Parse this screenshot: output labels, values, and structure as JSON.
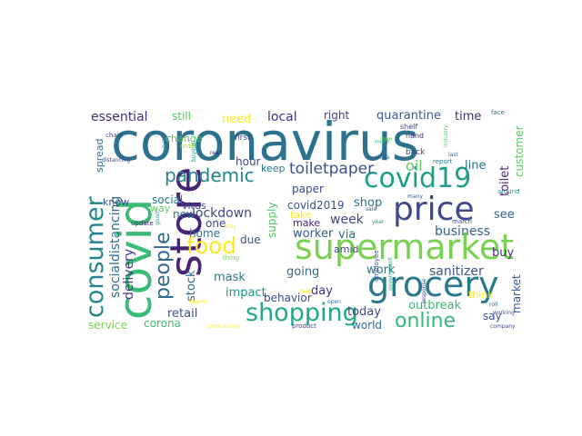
{
  "cloud": {
    "background": "#ffffff",
    "words": [
      {
        "text": "coronavirus",
        "color": "#2c728e"
      },
      {
        "text": "store",
        "color": "#482475"
      },
      {
        "text": "covid",
        "color": "#3bbb75"
      },
      {
        "text": "supermarket",
        "color": "#7ad151"
      },
      {
        "text": "grocery",
        "color": "#2a788e"
      },
      {
        "text": "price",
        "color": "#3e4a89"
      },
      {
        "text": "consumer",
        "color": "#25858e"
      },
      {
        "text": "covid19",
        "color": "#1f9e89"
      },
      {
        "text": "shopping",
        "color": "#22a884"
      },
      {
        "text": "food",
        "color": "#fde725"
      },
      {
        "text": "online",
        "color": "#35b779"
      },
      {
        "text": "people",
        "color": "#31688e"
      },
      {
        "text": "pandemic",
        "color": "#26828e"
      },
      {
        "text": "toiletpaper",
        "color": "#3b528b"
      },
      {
        "text": "socialdistancing",
        "color": "#2e6f8e"
      },
      {
        "text": "lockdown",
        "color": "#404688"
      },
      {
        "text": "delivery",
        "color": "#443983"
      },
      {
        "text": "sanitizer",
        "color": "#3a548c"
      },
      {
        "text": "business",
        "color": "#33638d"
      },
      {
        "text": "essential",
        "color": "#472d7b"
      },
      {
        "text": "quarantine",
        "color": "#38598c"
      },
      {
        "text": "local",
        "color": "#46337f"
      },
      {
        "text": "need",
        "color": "#fde725"
      },
      {
        "text": "still",
        "color": "#5ec962"
      },
      {
        "text": "right",
        "color": "#414487"
      },
      {
        "text": "time",
        "color": "#472c7a"
      },
      {
        "text": "oil",
        "color": "#5ec962"
      },
      {
        "text": "paper",
        "color": "#3e4989"
      },
      {
        "text": "covid2019",
        "color": "#3b528b"
      },
      {
        "text": "shop",
        "color": "#2c728e"
      },
      {
        "text": "worker",
        "color": "#365c8d"
      },
      {
        "text": "via",
        "color": "#2d708e"
      },
      {
        "text": "week",
        "color": "#3f4889"
      },
      {
        "text": "supply",
        "color": "#52c569"
      },
      {
        "text": "stock",
        "color": "#31688e"
      },
      {
        "text": "mask",
        "color": "#2a788e"
      },
      {
        "text": "impact",
        "color": "#21918c"
      },
      {
        "text": "retail",
        "color": "#3b528b"
      },
      {
        "text": "corona",
        "color": "#44bf70"
      },
      {
        "text": "service",
        "color": "#7ad151"
      },
      {
        "text": "outbreak",
        "color": "#35b779"
      },
      {
        "text": "today",
        "color": "#404688"
      },
      {
        "text": "world",
        "color": "#2e6e8e"
      },
      {
        "text": "day",
        "color": "#46337f"
      },
      {
        "text": "work",
        "color": "#2a778e"
      },
      {
        "text": "going",
        "color": "#31688e"
      },
      {
        "text": "behavior",
        "color": "#3e4989"
      },
      {
        "text": "market",
        "color": "#38598c"
      },
      {
        "text": "buy",
        "color": "#472d7b"
      },
      {
        "text": "say",
        "color": "#3b528b"
      },
      {
        "text": "see",
        "color": "#33638d"
      },
      {
        "text": "toilet",
        "color": "#482878"
      },
      {
        "text": "line",
        "color": "#2e6f8e"
      },
      {
        "text": "customer",
        "color": "#5ec962"
      },
      {
        "text": "hour",
        "color": "#3e4a89"
      },
      {
        "text": "keep",
        "color": "#2a788e"
      },
      {
        "text": "change",
        "color": "#52c569"
      },
      {
        "text": "spread",
        "color": "#2c728e"
      },
      {
        "text": "know",
        "color": "#3b528b"
      },
      {
        "text": "way",
        "color": "#5ec962"
      },
      {
        "text": "social",
        "color": "#2a788e"
      },
      {
        "text": "new",
        "color": "#31688e"
      },
      {
        "text": "one",
        "color": "#404688"
      },
      {
        "text": "virus",
        "color": "#3e4a89"
      },
      {
        "text": "home",
        "color": "#2c728e"
      },
      {
        "text": "due",
        "color": "#3b528b"
      },
      {
        "text": "make",
        "color": "#482475"
      },
      {
        "text": "take",
        "color": "#fde725"
      },
      {
        "text": "amid",
        "color": "#3e4a89"
      },
      {
        "text": "think",
        "color": "#fde725"
      },
      {
        "text": "first",
        "color": "#3e4989"
      },
      {
        "text": "face",
        "color": "#2c728e"
      },
      {
        "text": "chain",
        "color": "#414487"
      },
      {
        "text": "distancing",
        "color": "#3b528b"
      },
      {
        "text": "order",
        "color": "#9fda3a"
      },
      {
        "text": "read",
        "color": "#482475"
      },
      {
        "text": "back",
        "color": "#414487"
      },
      {
        "text": "hand",
        "color": "#46337f"
      },
      {
        "text": "shelf",
        "color": "#3e4a89"
      },
      {
        "text": "report",
        "color": "#2a788e"
      },
      {
        "text": "around",
        "color": "#21918c"
      },
      {
        "text": "march",
        "color": "#404688"
      },
      {
        "text": "many",
        "color": "#3b528b"
      },
      {
        "text": "sale",
        "color": "#31688e"
      },
      {
        "text": "year",
        "color": "#21918c"
      },
      {
        "text": "employee",
        "color": "#3b528b"
      },
      {
        "text": "government",
        "color": "#22a884"
      },
      {
        "text": "industry",
        "color": "#5ec962"
      },
      {
        "text": "response",
        "color": "#404688"
      },
      {
        "text": "roll",
        "color": "#33638d"
      },
      {
        "text": "product",
        "color": "#414487"
      },
      {
        "text": "company",
        "color": "#3e4a89"
      },
      {
        "text": "open",
        "color": "#2c728e"
      },
      {
        "text": "health",
        "color": "#fde725"
      },
      {
        "text": "thing",
        "color": "#7ad151"
      },
      {
        "text": "stay",
        "color": "#fde725"
      },
      {
        "text": "good",
        "color": "#21918c"
      },
      {
        "text": "update",
        "color": "#482878"
      },
      {
        "text": "coronacrisis",
        "color": "#fde725"
      },
      {
        "text": "find",
        "color": "#fde725"
      },
      {
        "text": "working",
        "color": "#3b528b"
      },
      {
        "text": "last",
        "color": "#2e6f8e"
      },
      {
        "text": "much",
        "color": "#22a884"
      },
      {
        "text": "china",
        "color": "#3b528b"
      },
      {
        "text": "item",
        "color": "#5ec962"
      },
      {
        "text": "panic",
        "color": "#2c728e"
      },
      {
        "text": "buying",
        "color": "#21918c"
      }
    ]
  }
}
